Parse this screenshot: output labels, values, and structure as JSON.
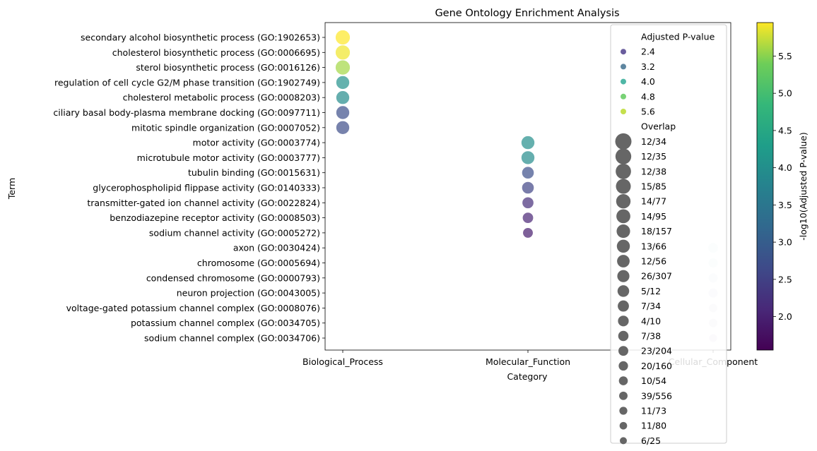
{
  "chart_data": {
    "type": "scatter",
    "title": "Gene Ontology Enrichment Analysis",
    "xlabel": "Category",
    "ylabel": "Term",
    "categories": [
      "Biological_Process",
      "Molecular_Function",
      "Cellular_Component"
    ],
    "terms": [
      "secondary alcohol biosynthetic process (GO:1902653)",
      "cholesterol biosynthetic process (GO:0006695)",
      "sterol biosynthetic process (GO:0016126)",
      "regulation of cell cycle G2/M phase transition (GO:1902749)",
      "cholesterol metabolic process (GO:0008203)",
      "ciliary basal body-plasma membrane docking (GO:0097711)",
      "mitotic spindle organization (GO:0007052)",
      "motor activity (GO:0003774)",
      "microtubule motor activity (GO:0003777)",
      "tubulin binding (GO:0015631)",
      "glycerophospholipid flippase activity (GO:0140333)",
      "transmitter-gated ion channel activity (GO:0022824)",
      "benzodiazepine receptor activity (GO:0008503)",
      "sodium channel activity (GO:0005272)",
      "axon (GO:0030424)",
      "chromosome (GO:0005694)",
      "condensed chromosome (GO:0000793)",
      "neuron projection (GO:0043005)",
      "voltage-gated potassium channel complex (GO:0008076)",
      "potassium channel complex (GO:0034705)",
      "sodium channel complex (GO:0034706)"
    ],
    "points": [
      {
        "category": "Biological_Process",
        "term": "secondary alcohol biosynthetic process (GO:1902653)",
        "neg_log10_p": 5.95,
        "count": 12
      },
      {
        "category": "Biological_Process",
        "term": "cholesterol biosynthetic process (GO:0006695)",
        "neg_log10_p": 5.9,
        "count": 12
      },
      {
        "category": "Biological_Process",
        "term": "sterol biosynthetic process (GO:0016126)",
        "neg_log10_p": 5.6,
        "count": 12
      },
      {
        "category": "Biological_Process",
        "term": "regulation of cell cycle G2/M phase transition (GO:1902749)",
        "neg_log10_p": 4.05,
        "count": 10
      },
      {
        "category": "Biological_Process",
        "term": "cholesterol metabolic process (GO:0008203)",
        "neg_log10_p": 3.95,
        "count": 10
      },
      {
        "category": "Biological_Process",
        "term": "ciliary basal body-plasma membrane docking (GO:0097711)",
        "neg_log10_p": 2.75,
        "count": 10
      },
      {
        "category": "Biological_Process",
        "term": "mitotic spindle organization (GO:0007052)",
        "neg_log10_p": 2.7,
        "count": 10
      },
      {
        "category": "Molecular_Function",
        "term": "motor activity (GO:0003774)",
        "neg_log10_p": 4.0,
        "count": 10
      },
      {
        "category": "Molecular_Function",
        "term": "microtubule motor activity (GO:0003777)",
        "neg_log10_p": 3.95,
        "count": 10
      },
      {
        "category": "Molecular_Function",
        "term": "tubulin binding (GO:0015631)",
        "neg_log10_p": 2.75,
        "count": 8
      },
      {
        "category": "Molecular_Function",
        "term": "glycerophospholipid flippase activity (GO:0140333)",
        "neg_log10_p": 2.55,
        "count": 8
      },
      {
        "category": "Molecular_Function",
        "term": "transmitter-gated ion channel activity (GO:0022824)",
        "neg_log10_p": 2.2,
        "count": 7
      },
      {
        "category": "Molecular_Function",
        "term": "benzodiazepine receptor activity (GO:0008503)",
        "neg_log10_p": 2.05,
        "count": 6
      },
      {
        "category": "Molecular_Function",
        "term": "sodium channel activity (GO:0005272)",
        "neg_log10_p": 1.95,
        "count": 5
      },
      {
        "category": "Cellular_Component",
        "term": "axon (GO:0030424)",
        "neg_log10_p": 4.0,
        "count": 5
      },
      {
        "category": "Cellular_Component",
        "term": "chromosome (GO:0005694)",
        "neg_log10_p": 3.9,
        "count": 4
      },
      {
        "category": "Cellular_Component",
        "term": "condensed chromosome (GO:0000793)",
        "neg_log10_p": 2.8,
        "count": 4
      },
      {
        "category": "Cellular_Component",
        "term": "neuron projection (GO:0043005)",
        "neg_log10_p": 2.6,
        "count": 4
      },
      {
        "category": "Cellular_Component",
        "term": "voltage-gated potassium channel complex (GO:0008076)",
        "neg_log10_p": 2.2,
        "count": 3
      },
      {
        "category": "Cellular_Component",
        "term": "potassium channel complex (GO:0034705)",
        "neg_log10_p": 2.05,
        "count": 3
      },
      {
        "category": "Cellular_Component",
        "term": "sodium channel complex (GO:0034706)",
        "neg_log10_p": 1.95,
        "count": 2
      }
    ],
    "colorbar": {
      "label": "-log10(Adjusted P-value)",
      "colormap": "viridis",
      "range": [
        1.55,
        5.95
      ],
      "ticks": [
        "2.0",
        "2.5",
        "3.0",
        "3.5",
        "4.0",
        "4.5",
        "5.0",
        "5.5"
      ]
    },
    "legend": {
      "placement": "top-right",
      "hue_title": "Adjusted P-value",
      "hue_entries": [
        {
          "label": "2.4",
          "color": "#6a5d9d"
        },
        {
          "label": "3.2",
          "color": "#5e86a0"
        },
        {
          "label": "4.0",
          "color": "#4fb7a6"
        },
        {
          "label": "4.8",
          "color": "#78d276"
        },
        {
          "label": "5.6",
          "color": "#c5e04d"
        }
      ],
      "size_title": "Overlap",
      "size_entries": [
        "12/34",
        "12/35",
        "12/38",
        "15/85",
        "14/77",
        "14/95",
        "18/157",
        "13/66",
        "12/56",
        "26/307",
        "5/12",
        "7/34",
        "4/10",
        "7/38",
        "23/204",
        "20/160",
        "10/54",
        "39/556",
        "11/73",
        "11/80",
        "6/25"
      ]
    }
  }
}
